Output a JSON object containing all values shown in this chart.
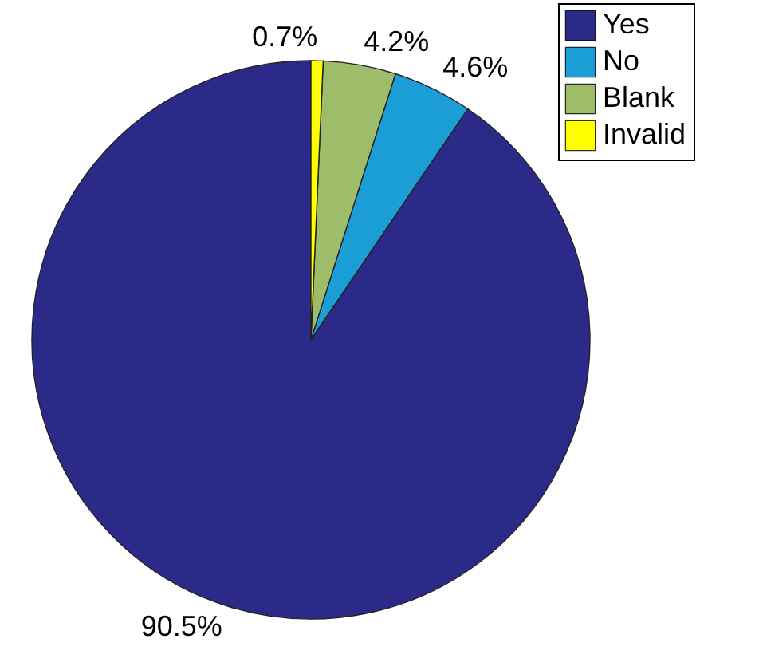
{
  "chart_data": {
    "type": "pie",
    "categories": [
      "Yes",
      "No",
      "Blank",
      "Invalid"
    ],
    "values": [
      90.5,
      4.6,
      4.2,
      0.7
    ],
    "colors": [
      "#2c2a88",
      "#1b9ed6",
      "#9dbd6b",
      "#ffff00"
    ],
    "value_labels": [
      "90.5%",
      "4.6%",
      "4.2%",
      "0.7%"
    ],
    "legend": "top right"
  }
}
